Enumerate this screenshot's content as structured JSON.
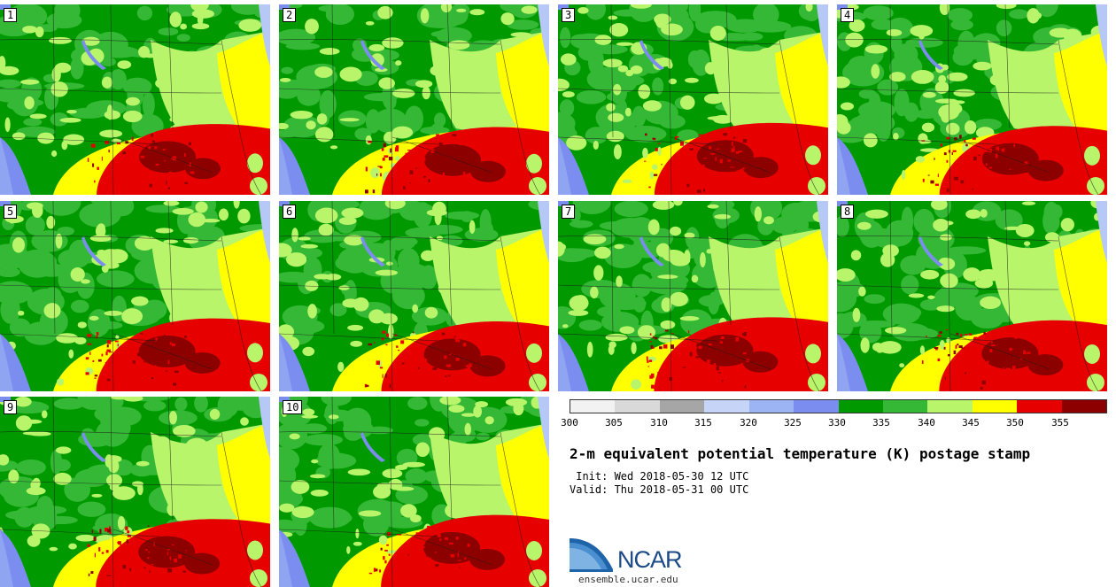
{
  "figure": {
    "title": "2-m equivalent potential temperature (K) postage stamp",
    "init_line": " Init: Wed 2018-05-30 12 UTC",
    "valid_line": "Valid: Thu 2018-05-31 00 UTC",
    "members": [
      "1",
      "2",
      "3",
      "4",
      "5",
      "6",
      "7",
      "8",
      "9",
      "10"
    ]
  },
  "colorbar": {
    "ticks": [
      "300",
      "305",
      "310",
      "315",
      "320",
      "325",
      "330",
      "335",
      "340",
      "345",
      "350",
      "355"
    ],
    "colors": [
      "#f2f2f2",
      "#d9d9d9",
      "#a6a6a6",
      "#c6d5f7",
      "#9db4f4",
      "#7b8ef0",
      "#009a00",
      "#35b835",
      "#b8f56a",
      "#ffff00",
      "#e60000",
      "#8c0000"
    ]
  },
  "logo": {
    "name": "NCAR",
    "url": "ensemble.ucar.edu"
  }
}
